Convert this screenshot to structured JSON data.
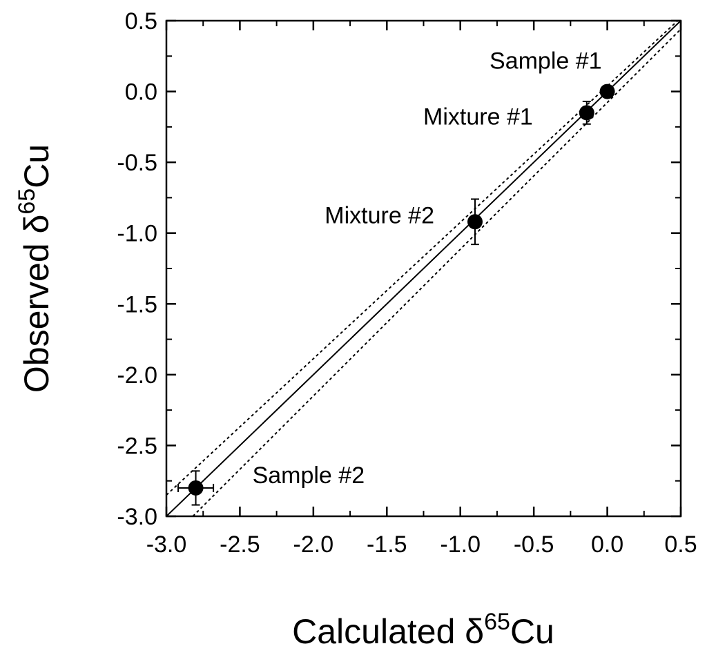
{
  "chart_data": {
    "type": "scatter",
    "xlabel": {
      "prefix": "Calculated ",
      "symbol": "δ",
      "superscript": "65",
      "suffix": "Cu"
    },
    "ylabel": {
      "prefix": "Observed ",
      "symbol": "δ",
      "superscript": "65",
      "suffix": "Cu"
    },
    "xlim": [
      -3.0,
      0.5
    ],
    "ylim": [
      -3.0,
      0.5
    ],
    "xticks": [
      "-3.0",
      "-2.5",
      "-2.0",
      "-1.5",
      "-1.0",
      "-0.5",
      "0.0",
      "0.5"
    ],
    "yticks": [
      "0.5",
      "0.0",
      "-0.5",
      "-1.0",
      "-1.5",
      "-2.0",
      "-2.5",
      "-3.0"
    ],
    "grid": false,
    "points": [
      {
        "label": "Sample #1",
        "x": 0.0,
        "y": 0.0,
        "xerr": 0.0,
        "yerr": 0.0
      },
      {
        "label": "Mixture #1",
        "x": -0.14,
        "y": -0.15,
        "xerr": 0.0,
        "yerr": 0.08
      },
      {
        "label": "Mixture #2",
        "x": -0.9,
        "y": -0.92,
        "xerr": 0.0,
        "yerr": 0.16
      },
      {
        "label": "Sample #2",
        "x": -2.8,
        "y": -2.8,
        "xerr": 0.12,
        "yerr": 0.12
      }
    ],
    "lines": [
      {
        "style": "solid",
        "x": [
          -3.0,
          0.5
        ],
        "y": [
          -3.0,
          0.5
        ]
      },
      {
        "style": "dotted",
        "x": [
          -3.0,
          0.5
        ],
        "y": [
          -2.85,
          0.52
        ]
      },
      {
        "style": "dotted",
        "x": [
          -2.82,
          0.5
        ],
        "y": [
          -3.0,
          0.44
        ]
      }
    ],
    "colors": {
      "marker": "#000000",
      "line": "#000000"
    }
  }
}
